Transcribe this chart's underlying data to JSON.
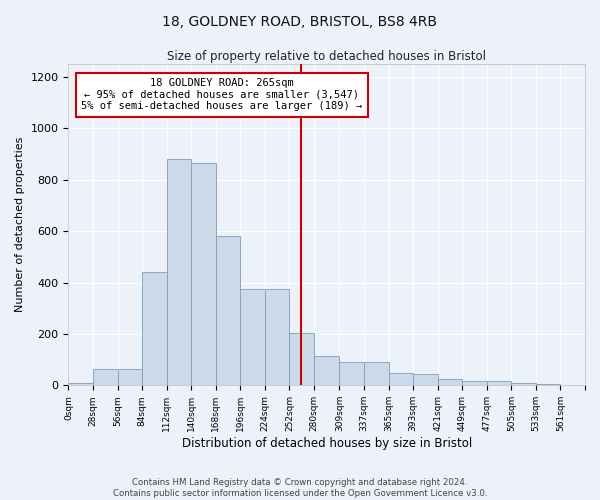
{
  "title": "18, GOLDNEY ROAD, BRISTOL, BS8 4RB",
  "subtitle": "Size of property relative to detached houses in Bristol",
  "xlabel": "Distribution of detached houses by size in Bristol",
  "ylabel": "Number of detached properties",
  "bar_color": "#ccd9e8",
  "bar_edge_color": "#7aa0be",
  "background_color": "#edf1fa",
  "grid_color": "#ffffff",
  "vline_color": "#cc0000",
  "vline_x": 265,
  "bin_edges": [
    0,
    28,
    56,
    84,
    112,
    140,
    168,
    196,
    224,
    252,
    280,
    309,
    337,
    365,
    393,
    421,
    449,
    477,
    505,
    533,
    561
  ],
  "bar_heights": [
    10,
    65,
    65,
    440,
    880,
    865,
    580,
    375,
    375,
    205,
    115,
    90,
    90,
    50,
    45,
    25,
    18,
    15,
    8,
    5,
    3
  ],
  "tick_labels": [
    "0sqm",
    "28sqm",
    "56sqm",
    "84sqm",
    "112sqm",
    "140sqm",
    "168sqm",
    "196sqm",
    "224sqm",
    "252sqm",
    "280sqm",
    "309sqm",
    "337sqm",
    "365sqm",
    "393sqm",
    "421sqm",
    "449sqm",
    "477sqm",
    "505sqm",
    "533sqm",
    "561sqm"
  ],
  "annotation_text": "18 GOLDNEY ROAD: 265sqm\n← 95% of detached houses are smaller (3,547)\n5% of semi-detached houses are larger (189) →",
  "annotation_box_color": "#ffffff",
  "annotation_box_edge": "#cc0000",
  "ylim": [
    0,
    1250
  ],
  "yticks": [
    0,
    200,
    400,
    600,
    800,
    1000,
    1200
  ],
  "footer1": "Contains HM Land Registry data © Crown copyright and database right 2024.",
  "footer2": "Contains public sector information licensed under the Open Government Licence v3.0."
}
